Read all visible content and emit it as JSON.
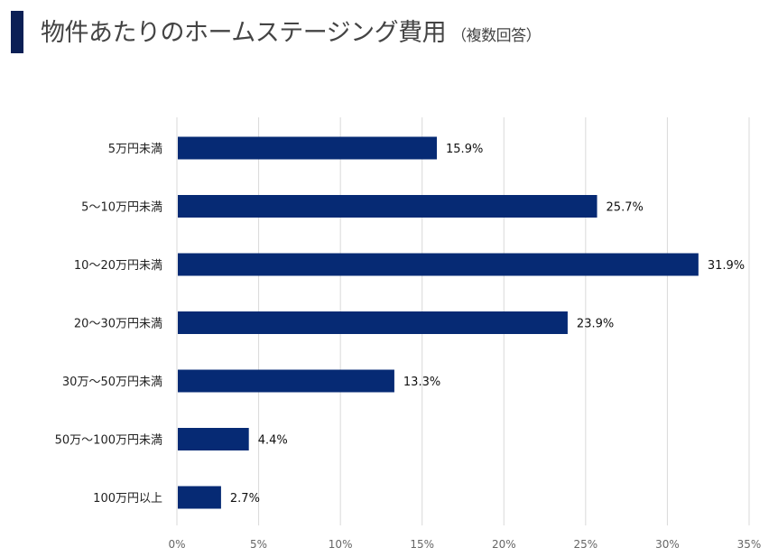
{
  "title": "物件あたりのホームステージング費用",
  "subtitle": "（複数回答）",
  "colors": {
    "bar": "#062a74",
    "title_bar": "#0b1f55",
    "grid": "#d9d9d9"
  },
  "chart_data": {
    "type": "bar",
    "orientation": "horizontal",
    "categories": [
      "5万円未満",
      "5〜10万円未満",
      "10〜20万円未満",
      "20〜30万円未満",
      "30万〜50万円未満",
      "50万〜100万円未満",
      "100万円以上"
    ],
    "values": [
      15.9,
      25.7,
      31.9,
      23.9,
      13.3,
      4.4,
      2.7
    ],
    "data_labels": [
      "15.9%",
      "25.7%",
      "31.9%",
      "23.9%",
      "13.3%",
      "4.4%",
      "2.7%"
    ],
    "xlim": [
      0,
      35
    ],
    "xticks": [
      0,
      5,
      10,
      15,
      20,
      25,
      30,
      35
    ],
    "xtick_labels": [
      "0%",
      "5%",
      "10%",
      "15%",
      "20%",
      "25%",
      "30%",
      "35%"
    ],
    "grid": true,
    "legend": "none"
  }
}
